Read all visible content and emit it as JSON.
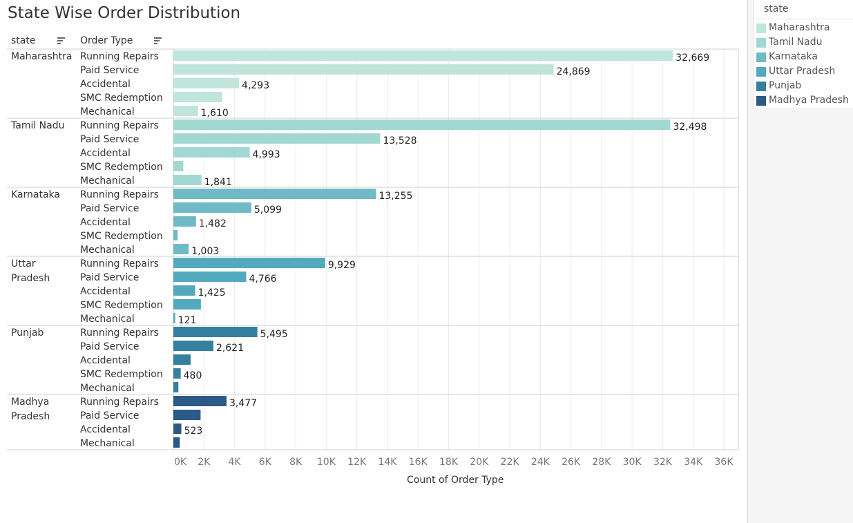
{
  "title": "State Wise Order Distribution",
  "headers": {
    "state": "state",
    "order_type": "Order Type"
  },
  "legend": {
    "title": "state",
    "items": [
      {
        "label": "Maharashtra",
        "color": "#c0e6dc"
      },
      {
        "label": "Tamil Nadu",
        "color": "#a2d8d2"
      },
      {
        "label": "Karnataka",
        "color": "#6fbac6"
      },
      {
        "label": "Uttar Pradesh",
        "color": "#53aabf"
      },
      {
        "label": "Punjab",
        "color": "#357f9f"
      },
      {
        "label": "Madhya Pradesh",
        "color": "#2c5a87"
      }
    ]
  },
  "chart_data": {
    "type": "bar",
    "orientation": "horizontal",
    "title": "State Wise Order Distribution",
    "xlabel": "Count of Order Type",
    "xlim": [
      0,
      36000
    ],
    "x_ticks": [
      "0K",
      "2K",
      "4K",
      "6K",
      "8K",
      "10K",
      "12K",
      "14K",
      "16K",
      "18K",
      "20K",
      "22K",
      "24K",
      "26K",
      "28K",
      "30K",
      "32K",
      "34K",
      "36K"
    ],
    "grid": true,
    "legend_placement": "right",
    "groups": [
      {
        "state": "Maharashtra",
        "state_lines": [
          "Maharashtra"
        ],
        "color": "#c0e6dc",
        "bars": [
          {
            "order_type": "Running Repairs",
            "value": 32669,
            "label": "32,669"
          },
          {
            "order_type": "Paid Service",
            "value": 24869,
            "label": "24,869"
          },
          {
            "order_type": "Accidental",
            "value": 4293,
            "label": "4,293"
          },
          {
            "order_type": "SMC Redemption",
            "value": 3200,
            "label": ""
          },
          {
            "order_type": "Mechanical",
            "value": 1610,
            "label": "1,610"
          }
        ]
      },
      {
        "state": "Tamil Nadu",
        "state_lines": [
          "Tamil Nadu"
        ],
        "color": "#a2d8d2",
        "bars": [
          {
            "order_type": "Running Repairs",
            "value": 32498,
            "label": "32,498"
          },
          {
            "order_type": "Paid Service",
            "value": 13528,
            "label": "13,528"
          },
          {
            "order_type": "Accidental",
            "value": 4993,
            "label": "4,993"
          },
          {
            "order_type": "SMC Redemption",
            "value": 650,
            "label": ""
          },
          {
            "order_type": "Mechanical",
            "value": 1841,
            "label": "1,841"
          }
        ]
      },
      {
        "state": "Karnataka",
        "state_lines": [
          "Karnataka"
        ],
        "color": "#6fbac6",
        "bars": [
          {
            "order_type": "Running Repairs",
            "value": 13255,
            "label": "13,255"
          },
          {
            "order_type": "Paid Service",
            "value": 5099,
            "label": "5,099"
          },
          {
            "order_type": "Accidental",
            "value": 1482,
            "label": "1,482"
          },
          {
            "order_type": "SMC Redemption",
            "value": 280,
            "label": ""
          },
          {
            "order_type": "Mechanical",
            "value": 1003,
            "label": "1,003"
          }
        ]
      },
      {
        "state": "Uttar Pradesh",
        "state_lines": [
          "Uttar",
          "Pradesh"
        ],
        "color": "#53aabf",
        "bars": [
          {
            "order_type": "Running Repairs",
            "value": 9929,
            "label": "9,929"
          },
          {
            "order_type": "Paid Service",
            "value": 4766,
            "label": "4,766"
          },
          {
            "order_type": "Accidental",
            "value": 1425,
            "label": "1,425"
          },
          {
            "order_type": "SMC Redemption",
            "value": 1800,
            "label": ""
          },
          {
            "order_type": "Mechanical",
            "value": 121,
            "label": "121"
          }
        ]
      },
      {
        "state": "Punjab",
        "state_lines": [
          "Punjab"
        ],
        "color": "#357f9f",
        "bars": [
          {
            "order_type": "Running Repairs",
            "value": 5495,
            "label": "5,495"
          },
          {
            "order_type": "Paid Service",
            "value": 2621,
            "label": "2,621"
          },
          {
            "order_type": "Accidental",
            "value": 1130,
            "label": ""
          },
          {
            "order_type": "SMC Redemption",
            "value": 480,
            "label": "480"
          },
          {
            "order_type": "Mechanical",
            "value": 330,
            "label": ""
          }
        ]
      },
      {
        "state": "Madhya Pradesh",
        "state_lines": [
          "Madhya",
          "Pradesh"
        ],
        "color": "#2c5a87",
        "bars": [
          {
            "order_type": "Running Repairs",
            "value": 3477,
            "label": "3,477"
          },
          {
            "order_type": "Paid Service",
            "value": 1780,
            "label": ""
          },
          {
            "order_type": "Accidental",
            "value": 523,
            "label": "523"
          },
          {
            "order_type": "Mechanical",
            "value": 420,
            "label": ""
          }
        ]
      }
    ]
  }
}
